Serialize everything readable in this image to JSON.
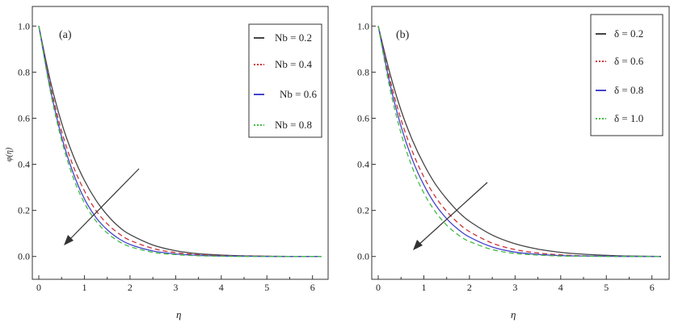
{
  "figure": {
    "ylabel": "φ(η)",
    "xlabel": "η"
  },
  "chart_data": [
    {
      "type": "line",
      "panel_label": "(a)",
      "xlabel": "η",
      "ylabel": "φ(η)",
      "xlim": [
        0,
        6.2
      ],
      "ylim": [
        -0.05,
        1.05
      ],
      "xticks": [
        "0",
        "1",
        "2",
        "3",
        "4",
        "5",
        "6"
      ],
      "yticks": [
        "0.0",
        "0.2",
        "0.4",
        "0.6",
        "0.8",
        "1.0"
      ],
      "legend_position": "top-right",
      "x": [
        0,
        0.25,
        0.5,
        0.75,
        1,
        1.25,
        1.5,
        1.75,
        2,
        2.5,
        3,
        3.5,
        4,
        4.5,
        5,
        5.5,
        6.2
      ],
      "series": [
        {
          "name": "Nb = 0.2",
          "color": "#444444",
          "dash": "solid",
          "values": [
            1.0,
            0.765,
            0.58,
            0.44,
            0.33,
            0.245,
            0.18,
            0.13,
            0.095,
            0.05,
            0.025,
            0.012,
            0.006,
            0.003,
            0.001,
            0.0005,
            0.0
          ]
        },
        {
          "name": "Nb = 0.4",
          "color": "#cc3333",
          "dash": "dashed",
          "values": [
            1.0,
            0.745,
            0.545,
            0.395,
            0.285,
            0.2,
            0.142,
            0.1,
            0.07,
            0.035,
            0.017,
            0.008,
            0.004,
            0.002,
            0.001,
            0.0,
            0.0
          ]
        },
        {
          "name": "Nb = 0.6",
          "color": "#4444cc",
          "dash": "solid",
          "values": [
            1.0,
            0.73,
            0.52,
            0.365,
            0.25,
            0.17,
            0.116,
            0.078,
            0.052,
            0.024,
            0.011,
            0.005,
            0.002,
            0.001,
            0.0,
            0.0,
            0.0
          ]
        },
        {
          "name": "Nb = 0.8",
          "color": "#44bb44",
          "dash": "dashed",
          "values": [
            1.0,
            0.72,
            0.505,
            0.345,
            0.232,
            0.155,
            0.102,
            0.066,
            0.043,
            0.018,
            0.008,
            0.003,
            0.001,
            0.0,
            0.0,
            0.0,
            0.0
          ]
        }
      ],
      "annotation": "arrow pointing toward lower-left (decreasing curves)"
    },
    {
      "type": "line",
      "panel_label": "(b)",
      "xlabel": "η",
      "ylabel": "",
      "xlim": [
        0,
        6.2
      ],
      "ylim": [
        -0.05,
        1.05
      ],
      "xticks": [
        "0",
        "1",
        "2",
        "3",
        "4",
        "5",
        "6"
      ],
      "yticks": [
        "0.0",
        "0.2",
        "0.4",
        "0.6",
        "0.8",
        "1.0"
      ],
      "legend_position": "top-right",
      "x": [
        0,
        0.25,
        0.5,
        0.75,
        1,
        1.25,
        1.5,
        1.75,
        2,
        2.5,
        3,
        3.5,
        4,
        4.5,
        5,
        5.5,
        6.2
      ],
      "series": [
        {
          "name": "δ = 0.2",
          "color": "#444444",
          "dash": "solid",
          "values": [
            1.0,
            0.8,
            0.635,
            0.505,
            0.4,
            0.315,
            0.25,
            0.195,
            0.153,
            0.093,
            0.055,
            0.032,
            0.018,
            0.01,
            0.005,
            0.002,
            0.0
          ]
        },
        {
          "name": "δ = 0.6",
          "color": "#cc3333",
          "dash": "dashed",
          "values": [
            1.0,
            0.775,
            0.595,
            0.455,
            0.345,
            0.26,
            0.196,
            0.146,
            0.108,
            0.058,
            0.03,
            0.015,
            0.007,
            0.003,
            0.001,
            0.0,
            0.0
          ]
        },
        {
          "name": "δ = 0.8",
          "color": "#4444cc",
          "dash": "solid",
          "values": [
            1.0,
            0.755,
            0.565,
            0.42,
            0.31,
            0.226,
            0.164,
            0.118,
            0.084,
            0.041,
            0.019,
            0.009,
            0.004,
            0.002,
            0.001,
            0.0,
            0.0
          ]
        },
        {
          "name": "δ = 1.0",
          "color": "#44bb44",
          "dash": "dashed",
          "values": [
            1.0,
            0.735,
            0.535,
            0.385,
            0.275,
            0.195,
            0.136,
            0.094,
            0.065,
            0.03,
            0.013,
            0.006,
            0.002,
            0.001,
            0.0,
            0.0,
            0.0
          ]
        }
      ],
      "annotation": "arrow pointing toward lower-left (decreasing curves)"
    }
  ]
}
